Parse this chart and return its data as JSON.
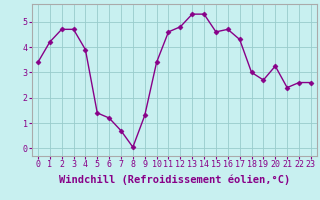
{
  "x": [
    0,
    1,
    2,
    3,
    4,
    5,
    6,
    7,
    8,
    9,
    10,
    11,
    12,
    13,
    14,
    15,
    16,
    17,
    18,
    19,
    20,
    21,
    22,
    23
  ],
  "y": [
    3.4,
    4.2,
    4.7,
    4.7,
    3.9,
    1.4,
    1.2,
    0.7,
    0.05,
    1.3,
    3.4,
    4.6,
    4.8,
    5.3,
    5.3,
    4.6,
    4.7,
    4.3,
    3.0,
    2.7,
    3.25,
    2.4,
    2.6,
    2.6
  ],
  "line_color": "#880088",
  "marker": "D",
  "marker_size": 2.5,
  "bg_color": "#c8f0f0",
  "grid_color": "#99cccc",
  "xlabel": "Windchill (Refroidissement éolien,°C)",
  "xlabel_color": "#880088",
  "xlabel_fontsize": 7.5,
  "xlim": [
    -0.5,
    23.5
  ],
  "ylim": [
    -0.3,
    5.7
  ],
  "yticks": [
    0,
    1,
    2,
    3,
    4,
    5
  ],
  "xticks": [
    0,
    1,
    2,
    3,
    4,
    5,
    6,
    7,
    8,
    9,
    10,
    11,
    12,
    13,
    14,
    15,
    16,
    17,
    18,
    19,
    20,
    21,
    22,
    23
  ],
  "tick_fontsize": 6,
  "tick_color": "#880088",
  "spine_color": "#aaaaaa",
  "linewidth": 1.0
}
